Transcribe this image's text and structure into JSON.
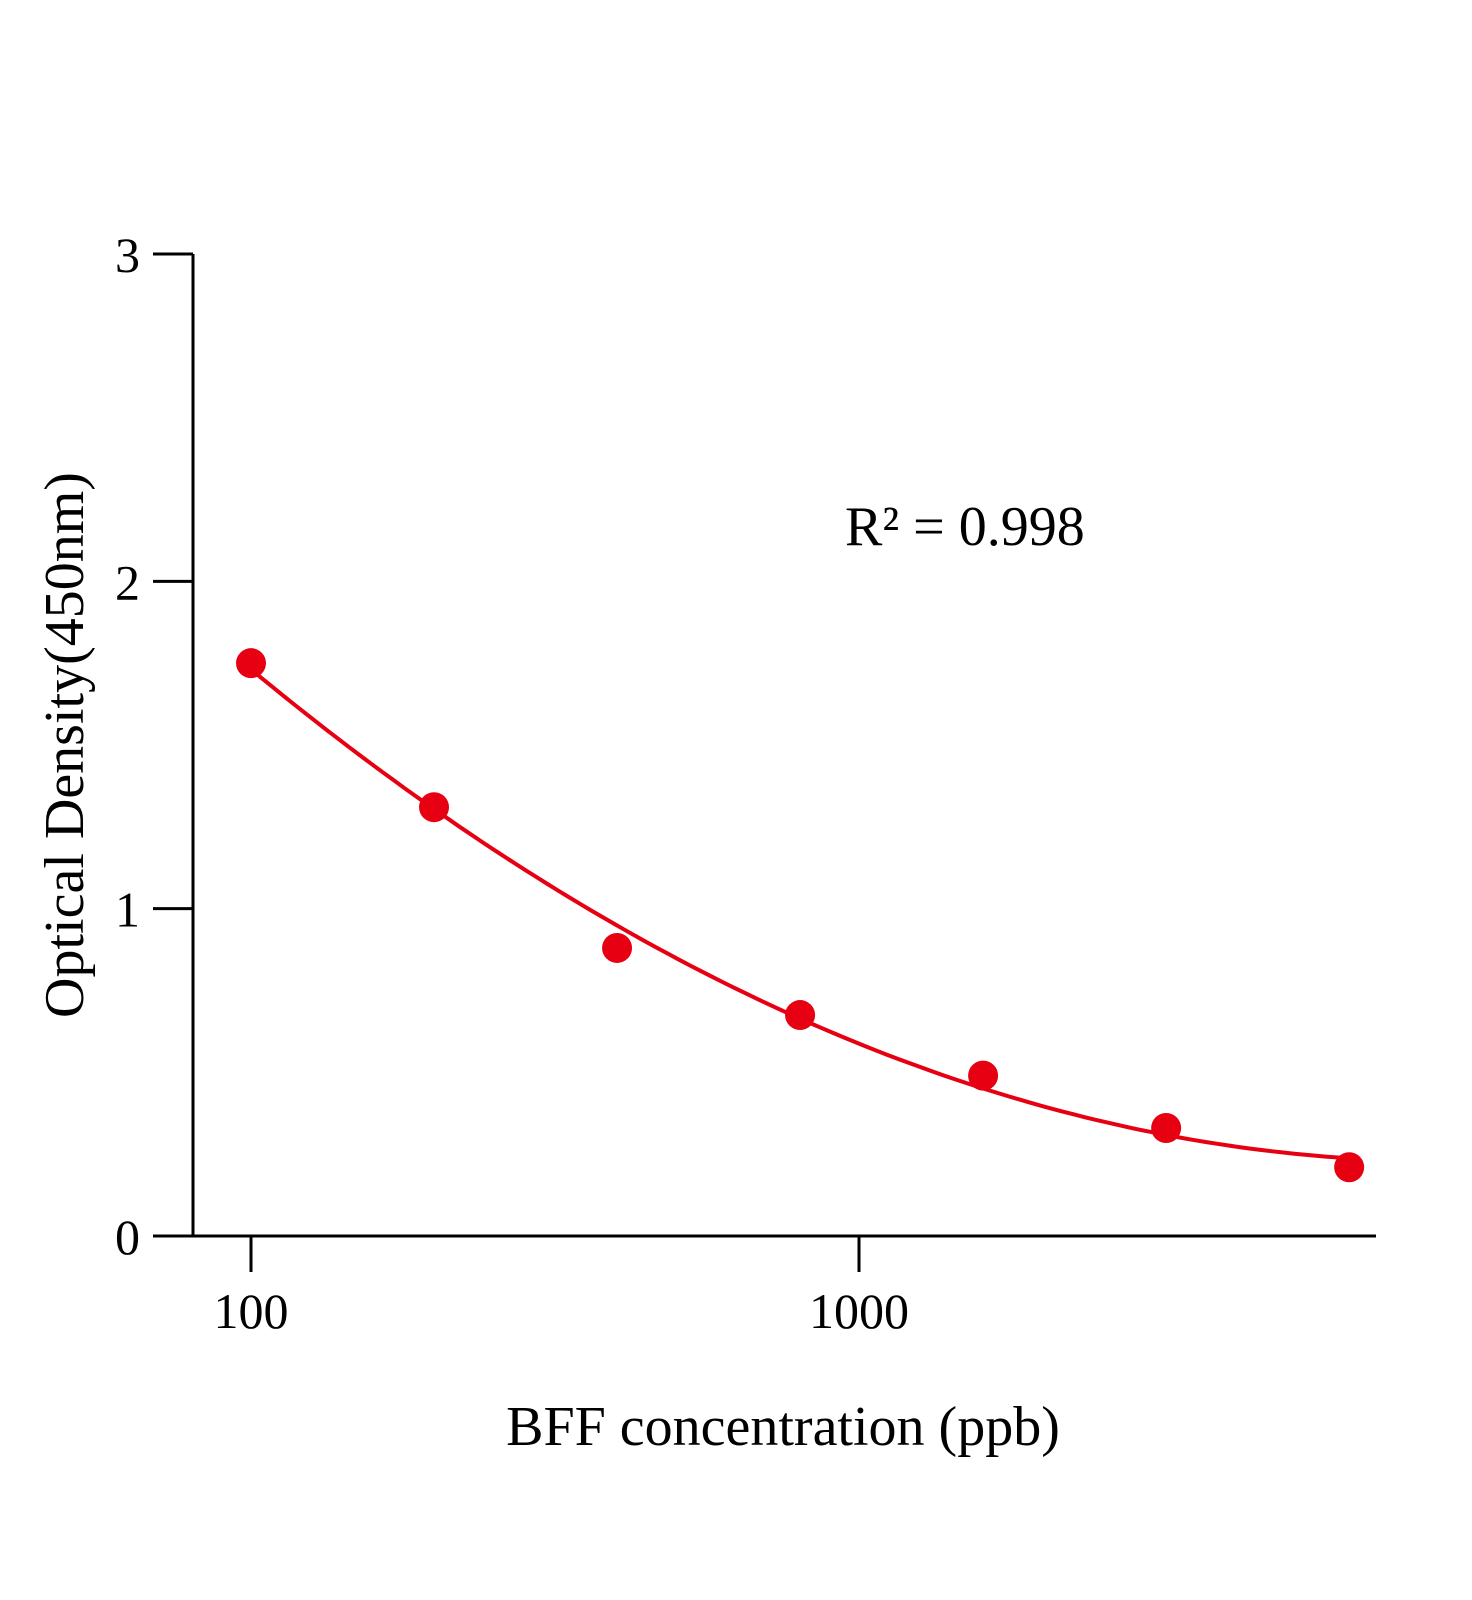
{
  "chart_data": {
    "type": "scatter",
    "title": "",
    "xlabel": "BFF concentration (ppb)",
    "ylabel": "Optical Density(450nm)",
    "x_scale": "log",
    "xlim": [
      80,
      7000
    ],
    "ylim": [
      0,
      3
    ],
    "grid": false,
    "x_ticks": [
      100,
      1000
    ],
    "x_tick_labels": [
      "100",
      "1000"
    ],
    "y_ticks": [
      0,
      1,
      2,
      3
    ],
    "y_tick_labels": [
      "0",
      "1",
      "2",
      "3"
    ],
    "series": [
      {
        "x": [
          100,
          200,
          400,
          800,
          1600,
          3200,
          6400
        ],
        "y": [
          1.75,
          1.31,
          0.88,
          0.675,
          0.49,
          0.33,
          0.21
        ],
        "fit": "smooth curve",
        "color": "#e60012"
      }
    ],
    "annotation": "R² = 0.998"
  }
}
